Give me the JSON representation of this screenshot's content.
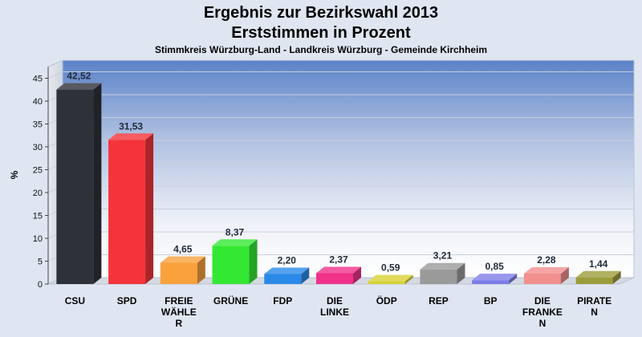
{
  "chart_data": {
    "type": "bar",
    "title": "Ergebnis zur Bezirkswahl 2013",
    "subtitle": "Erststimmen in Prozent",
    "caption": "Stimmkreis Würzburg-Land - Landkreis Würzburg - Gemeinde Kirchheim",
    "ylabel": "%",
    "xlabel": "",
    "ylim": [
      0,
      47.5
    ],
    "yticks": [
      "0",
      "5",
      "10",
      "15",
      "20",
      "25",
      "30",
      "35",
      "40",
      "45"
    ],
    "grid": true,
    "categories": [
      {
        "lines": [
          "CSU"
        ]
      },
      {
        "lines": [
          "SPD"
        ]
      },
      {
        "lines": [
          "FREIE",
          "WÄHLE",
          "R"
        ]
      },
      {
        "lines": [
          "GRÜNE"
        ]
      },
      {
        "lines": [
          "FDP"
        ]
      },
      {
        "lines": [
          "DIE",
          "LINKE"
        ]
      },
      {
        "lines": [
          "ÖDP"
        ]
      },
      {
        "lines": [
          "REP"
        ]
      },
      {
        "lines": [
          "BP"
        ]
      },
      {
        "lines": [
          "DIE",
          "FRANKE",
          "N"
        ]
      },
      {
        "lines": [
          "PIRATE",
          "N"
        ]
      }
    ],
    "values": [
      42.52,
      31.53,
      4.65,
      8.37,
      2.2,
      2.37,
      0.59,
      3.21,
      0.85,
      2.28,
      1.44
    ],
    "value_labels": [
      "42,52",
      "31,53",
      "4,65",
      "8,37",
      "2,20",
      "2,37",
      "0,59",
      "3,21",
      "0,85",
      "2,28",
      "1,44"
    ],
    "colors": [
      "#2e3138",
      "#f5333a",
      "#f9a13d",
      "#33e833",
      "#2a8ae8",
      "#f0328a",
      "#d8d233",
      "#9a9a9a",
      "#7d7de8",
      "#f28f8f",
      "#9c9c3a"
    ]
  }
}
